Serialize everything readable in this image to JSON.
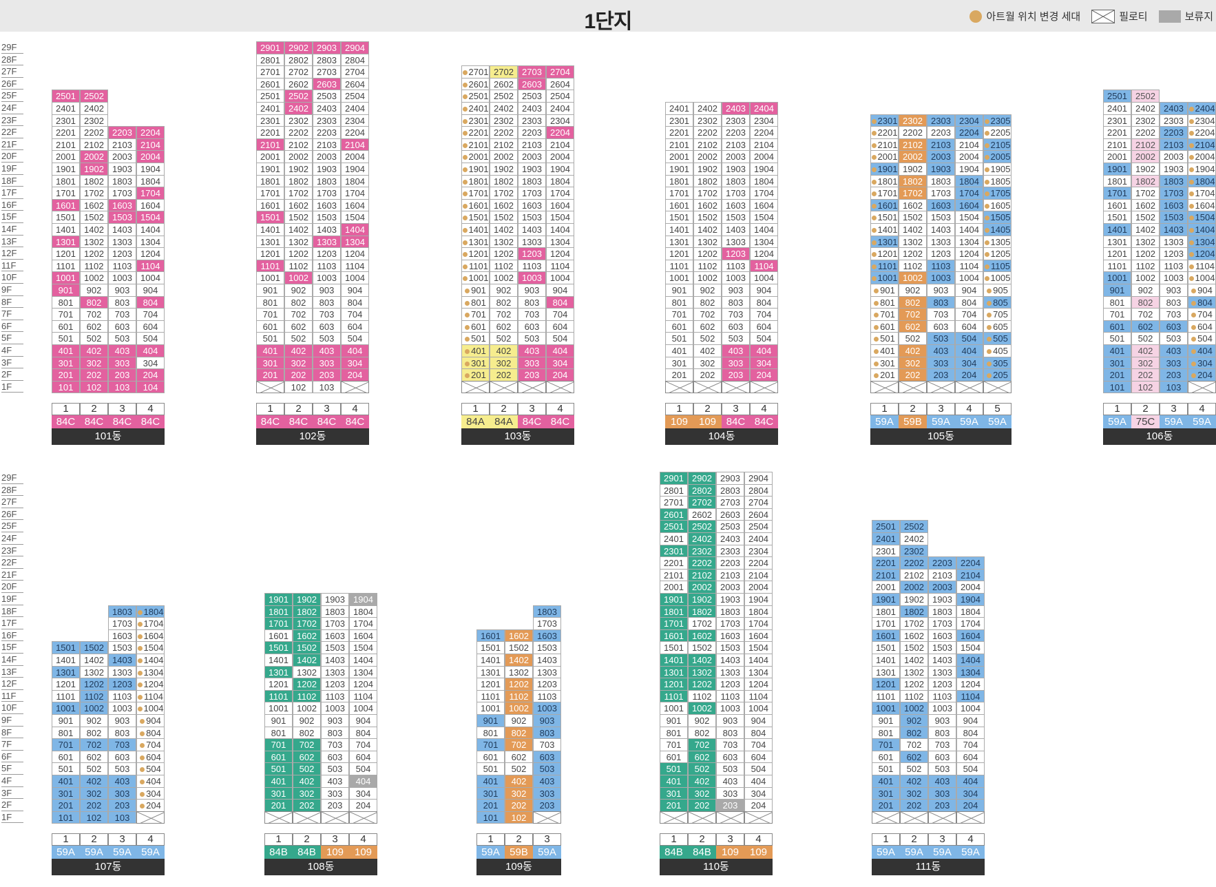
{
  "title": "1단지",
  "legend": {
    "changed": "아트월 위치 변경 세대",
    "piloti": "필로티",
    "reserved": "보류지"
  },
  "colors": {
    "pink": "#e3619f",
    "yellow": "#f6ed8e",
    "blue": "#7fb6e6",
    "orange": "#e39a56",
    "green": "#35a88c",
    "gray": "#a9a9a9",
    "lpink": "#f6d3e4",
    "piloti_border": "#888",
    "dot": "#d9a860"
  },
  "floor_labels": [
    "29F",
    "28F",
    "27F",
    "26F",
    "25F",
    "24F",
    "23F",
    "22F",
    "21F",
    "20F",
    "19F",
    "18F",
    "17F",
    "16F",
    "15F",
    "14F",
    "13F",
    "12F",
    "11F",
    "10F",
    "9F",
    "8F",
    "7F",
    "6F",
    "5F",
    "4F",
    "3F",
    "2F",
    "1F"
  ],
  "buildings": [
    {
      "dong": "101동",
      "row": 0,
      "lines": 4,
      "types": [
        "84C",
        "84C",
        "84C",
        "84C"
      ],
      "type_colors": [
        "pink",
        "pink",
        "pink",
        "pink"
      ],
      "heights": [
        25,
        25,
        22,
        22
      ],
      "piloti": [],
      "colored": {
        "2501": "pink",
        "2502": "pink",
        "2203": "pink",
        "2204": "pink",
        "2104": "pink",
        "2002": "pink",
        "2004": "pink",
        "1902": "pink",
        "1704": "pink",
        "1601": "pink",
        "1603": "pink",
        "1503": "pink",
        "1504": "pink",
        "1301": "pink",
        "1104": "pink",
        "1001": "pink",
        "901": "pink",
        "802": "pink",
        "804": "pink",
        "401": "pink",
        "402": "pink",
        "403": "pink",
        "404": "pink",
        "301": "pink",
        "302": "pink",
        "303": "pink",
        "201": "pink",
        "202": "pink",
        "203": "pink",
        "204": "pink",
        "101": "pink",
        "102": "pink",
        "103": "pink",
        "104": "pink"
      },
      "dots": []
    },
    {
      "dong": "102동",
      "row": 0,
      "lines": 4,
      "types": [
        "84C",
        "84C",
        "84C",
        "84C"
      ],
      "type_colors": [
        "pink",
        "pink",
        "pink",
        "pink"
      ],
      "heights": [
        29,
        29,
        29,
        29
      ],
      "piloti": [
        1,
        4
      ],
      "colored": {
        "2901": "pink",
        "2902": "pink",
        "2903": "pink",
        "2904": "pink",
        "2603": "pink",
        "2502": "pink",
        "2402": "pink",
        "2101": "pink",
        "2104": "pink",
        "1501": "pink",
        "1404": "pink",
        "1303": "pink",
        "1304": "pink",
        "1101": "pink",
        "1002": "pink",
        "401": "pink",
        "402": "pink",
        "403": "pink",
        "404": "pink",
        "301": "pink",
        "302": "pink",
        "303": "pink",
        "304": "pink",
        "201": "pink",
        "202": "pink",
        "203": "pink",
        "204": "pink"
      },
      "dots": []
    },
    {
      "dong": "103동",
      "row": 0,
      "lines": 4,
      "types": [
        "84A",
        "84A",
        "84C",
        "84C"
      ],
      "type_colors": [
        "yellow",
        "yellow",
        "pink",
        "pink"
      ],
      "heights": [
        27,
        27,
        27,
        27
      ],
      "piloti": [
        1,
        2,
        3,
        4
      ],
      "colored": {
        "2702": "yellow",
        "2703": "pink",
        "2704": "pink",
        "2603": "pink",
        "2204": "pink",
        "1203": "pink",
        "1003": "pink",
        "804": "pink",
        "401": "yellow",
        "402": "yellow",
        "403": "pink",
        "404": "pink",
        "301": "yellow",
        "302": "yellow",
        "303": "pink",
        "304": "pink",
        "201": "yellow",
        "202": "yellow",
        "203": "pink",
        "204": "pink"
      },
      "dots": [
        1
      ]
    },
    {
      "dong": "104동",
      "row": 0,
      "lines": 4,
      "types": [
        "109",
        "109",
        "84C",
        "84C"
      ],
      "type_colors": [
        "orange",
        "orange",
        "pink",
        "pink"
      ],
      "heights": [
        24,
        24,
        24,
        24
      ],
      "piloti": [
        1,
        2,
        3,
        4
      ],
      "colored": {
        "2403": "pink",
        "2404": "pink",
        "1203": "pink",
        "1104": "pink",
        "403": "pink",
        "404": "pink",
        "303": "pink",
        "304": "pink",
        "203": "pink",
        "204": "pink"
      },
      "dots": []
    },
    {
      "dong": "105동",
      "row": 0,
      "lines": 5,
      "types": [
        "59A",
        "59B",
        "59A",
        "59A",
        "59A"
      ],
      "type_colors": [
        "blue",
        "orange",
        "blue",
        "blue",
        "blue"
      ],
      "heights": [
        23,
        23,
        23,
        23,
        23
      ],
      "piloti": [
        1,
        2,
        3,
        4,
        5
      ],
      "colored": {
        "2301": "blue",
        "2302": "orange",
        "2303": "blue",
        "2304": "blue",
        "2305": "blue",
        "2204": "blue",
        "2102": "orange",
        "2103": "blue",
        "2105": "blue",
        "2002": "orange",
        "2003": "blue",
        "2005": "blue",
        "1901": "blue",
        "1903": "blue",
        "1802": "orange",
        "1804": "blue",
        "1702": "orange",
        "1704": "blue",
        "1705": "blue",
        "1601": "blue",
        "1603": "blue",
        "1604": "blue",
        "1505": "blue",
        "1405": "blue",
        "1301": "blue",
        "1101": "blue",
        "1103": "blue",
        "1105": "blue",
        "1001": "blue",
        "1002": "orange",
        "1003": "blue",
        "802": "orange",
        "803": "blue",
        "805": "blue",
        "702": "orange",
        "602": "orange",
        "503": "blue",
        "504": "blue",
        "505": "blue",
        "402": "orange",
        "403": "blue",
        "404": "blue",
        "302": "orange",
        "303": "blue",
        "304": "blue",
        "305": "blue",
        "202": "orange",
        "203": "blue",
        "204": "blue",
        "205": "blue"
      },
      "dots": [
        1,
        5
      ]
    },
    {
      "dong": "106동",
      "row": 0,
      "lines": 4,
      "types": [
        "59A",
        "75C",
        "59A",
        "59A"
      ],
      "type_colors": [
        "blue",
        "lpink",
        "blue",
        "blue"
      ],
      "heights": [
        25,
        25,
        24,
        24
      ],
      "piloti": [
        4
      ],
      "colored": {
        "2501": "blue",
        "2502": "lpink",
        "2403": "blue",
        "2404": "blue",
        "2203": "blue",
        "2102": "lpink",
        "2103": "blue",
        "2104": "blue",
        "2002": "lpink",
        "1901": "blue",
        "1802": "lpink",
        "1803": "blue",
        "1804": "blue",
        "1701": "blue",
        "1703": "blue",
        "1603": "blue",
        "1503": "blue",
        "1504": "blue",
        "1401": "blue",
        "1403": "blue",
        "1404": "blue",
        "1304": "blue",
        "1204": "blue",
        "1001": "blue",
        "901": "blue",
        "802": "lpink",
        "804": "blue",
        "601": "blue",
        "602": "blue",
        "603": "blue",
        "401": "blue",
        "402": "lpink",
        "403": "blue",
        "404": "blue",
        "301": "blue",
        "302": "lpink",
        "303": "blue",
        "304": "blue",
        "201": "blue",
        "202": "lpink",
        "203": "blue",
        "204": "blue",
        "101": "blue",
        "102": "lpink",
        "103": "blue"
      },
      "dots": [
        4
      ]
    },
    {
      "dong": "107동",
      "row": 1,
      "lines": 4,
      "types": [
        "59A",
        "59A",
        "59A",
        "59A"
      ],
      "type_colors": [
        "blue",
        "blue",
        "blue",
        "blue"
      ],
      "heights": [
        15,
        15,
        18,
        18
      ],
      "piloti": [
        4
      ],
      "colored": {
        "1803": "blue",
        "1804": "blue",
        "1501": "blue",
        "1502": "blue",
        "1403": "blue",
        "1301": "blue",
        "1202": "blue",
        "1203": "blue",
        "1102": "blue",
        "1001": "blue",
        "1002": "blue",
        "701": "blue",
        "702": "blue",
        "703": "blue",
        "401": "blue",
        "402": "blue",
        "403": "blue",
        "301": "blue",
        "302": "blue",
        "303": "blue",
        "201": "blue",
        "202": "blue",
        "203": "blue",
        "101": "blue",
        "102": "blue",
        "103": "blue"
      },
      "dots": [
        4
      ]
    },
    {
      "dong": "108동",
      "row": 1,
      "lines": 4,
      "types": [
        "84B",
        "84B",
        "109",
        "109"
      ],
      "type_colors": [
        "green",
        "green",
        "orange",
        "orange"
      ],
      "heights": [
        19,
        19,
        19,
        19
      ],
      "piloti": [
        1,
        2,
        3,
        4
      ],
      "colored": {
        "1901": "green",
        "1902": "green",
        "1904": "gray",
        "1801": "green",
        "1802": "green",
        "1701": "green",
        "1702": "green",
        "1602": "green",
        "1501": "green",
        "1502": "green",
        "1402": "green",
        "1301": "green",
        "1202": "green",
        "1101": "green",
        "1102": "green",
        "701": "green",
        "702": "green",
        "601": "green",
        "602": "green",
        "501": "green",
        "502": "green",
        "401": "green",
        "402": "green",
        "404": "gray",
        "301": "green",
        "302": "green",
        "201": "green",
        "202": "green"
      },
      "dots": []
    },
    {
      "dong": "109동",
      "row": 1,
      "lines": 3,
      "types": [
        "59A",
        "59B",
        "59A"
      ],
      "type_colors": [
        "blue",
        "orange",
        "blue"
      ],
      "heights": [
        16,
        16,
        18
      ],
      "piloti": [
        3
      ],
      "colored": {
        "1803": "blue",
        "1601": "blue",
        "1602": "orange",
        "1603": "blue",
        "1402": "orange",
        "1202": "orange",
        "1102": "orange",
        "1002": "orange",
        "1003": "blue",
        "901": "blue",
        "903": "blue",
        "802": "orange",
        "803": "blue",
        "701": "blue",
        "702": "orange",
        "603": "blue",
        "503": "blue",
        "401": "blue",
        "402": "orange",
        "403": "blue",
        "301": "blue",
        "302": "orange",
        "303": "blue",
        "201": "blue",
        "202": "orange",
        "203": "blue",
        "101": "blue",
        "102": "orange"
      },
      "dots": []
    },
    {
      "dong": "110동",
      "row": 1,
      "lines": 4,
      "types": [
        "84B",
        "84B",
        "109",
        "109"
      ],
      "type_colors": [
        "green",
        "green",
        "orange",
        "orange"
      ],
      "heights": [
        29,
        29,
        29,
        29
      ],
      "piloti": [
        1,
        2,
        3,
        4
      ],
      "colored": {
        "2901": "green",
        "2902": "green",
        "2802": "green",
        "2702": "green",
        "2601": "green",
        "2501": "green",
        "2502": "green",
        "2402": "green",
        "2301": "green",
        "2302": "green",
        "2202": "green",
        "2102": "green",
        "2002": "green",
        "1901": "green",
        "1902": "green",
        "1801": "green",
        "1802": "green",
        "1701": "green",
        "1601": "green",
        "1602": "green",
        "1401": "green",
        "1402": "green",
        "1301": "green",
        "1302": "green",
        "1201": "green",
        "1202": "green",
        "1101": "green",
        "1002": "green",
        "702": "green",
        "602": "green",
        "501": "green",
        "502": "green",
        "401": "green",
        "402": "green",
        "301": "green",
        "302": "green",
        "201": "green",
        "202": "green",
        "203": "gray"
      },
      "dots": []
    },
    {
      "dong": "111동",
      "row": 1,
      "lines": 4,
      "types": [
        "59A",
        "59A",
        "59A",
        "59A"
      ],
      "type_colors": [
        "blue",
        "blue",
        "blue",
        "blue"
      ],
      "heights": [
        25,
        25,
        22,
        22
      ],
      "piloti": [
        1,
        2,
        3,
        4
      ],
      "colored": {
        "2501": "blue",
        "2502": "blue",
        "2401": "blue",
        "2302": "blue",
        "2201": "blue",
        "2202": "blue",
        "2203": "blue",
        "2204": "blue",
        "2101": "blue",
        "2104": "blue",
        "2002": "blue",
        "2003": "blue",
        "1901": "blue",
        "1904": "blue",
        "1802": "blue",
        "1601": "blue",
        "1604": "blue",
        "1404": "blue",
        "1304": "blue",
        "1201": "blue",
        "1104": "blue",
        "1001": "blue",
        "1002": "blue",
        "902": "blue",
        "802": "blue",
        "701": "blue",
        "602": "blue",
        "401": "blue",
        "402": "blue",
        "403": "blue",
        "404": "blue",
        "301": "blue",
        "302": "blue",
        "303": "blue",
        "304": "blue",
        "201": "blue",
        "202": "blue",
        "203": "blue",
        "204": "blue"
      },
      "dots": []
    }
  ]
}
